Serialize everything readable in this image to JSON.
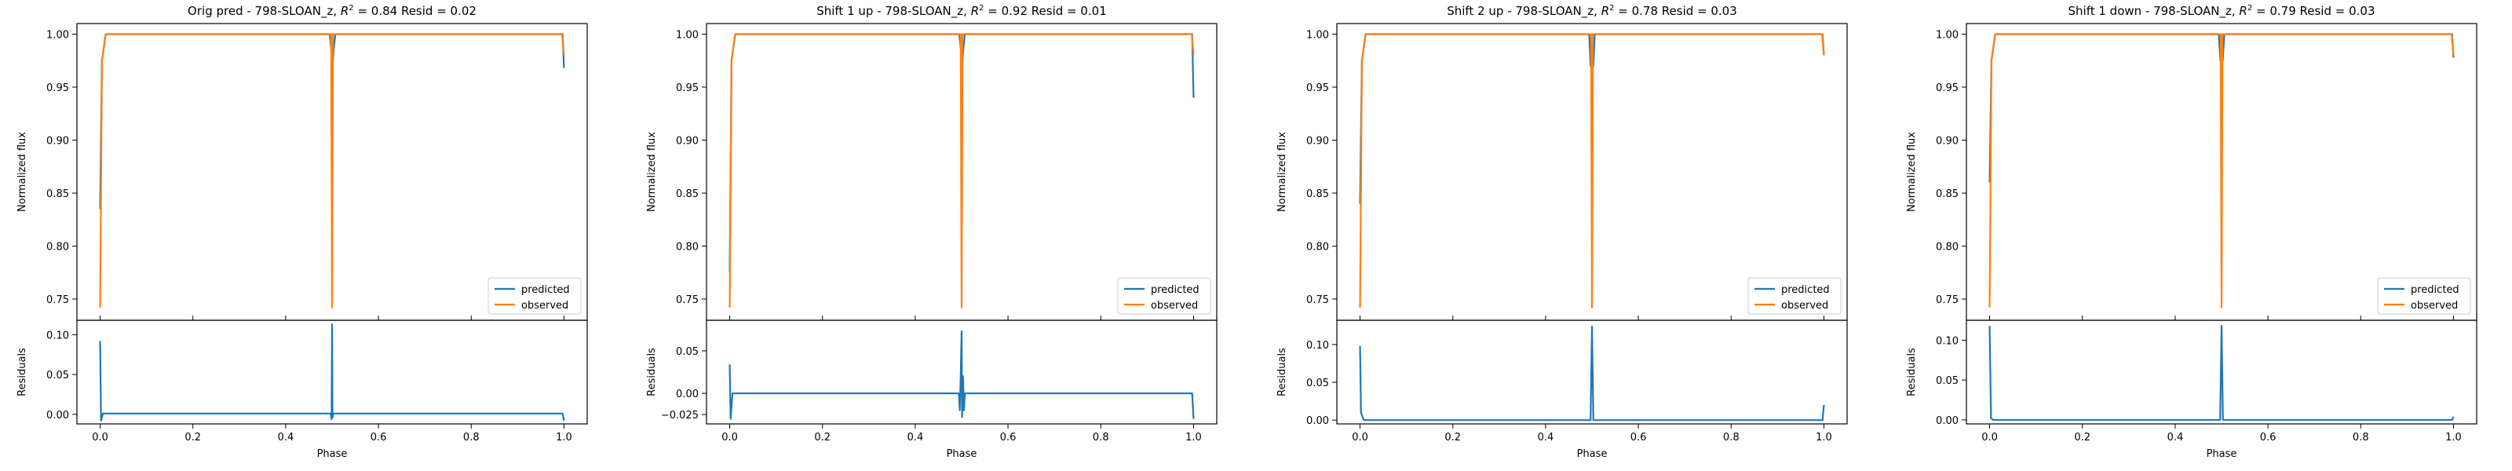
{
  "figure": {
    "colors": {
      "predicted": "#1f77b4",
      "observed": "#ff7f0e",
      "axis": "#000000"
    }
  },
  "chart_data": [
    {
      "type": "line",
      "title": "Orig pred - 798-SLOAN_z, R^2 = 0.84 Resid = 0.02",
      "title_parts": {
        "prefix": "Orig pred - 798-SLOAN_z, ",
        "r2": "0.84",
        "resid_text": " Resid = 0.02"
      },
      "main": {
        "ylabel": "Normalized flux",
        "ylim": [
          0.73,
          1.01
        ],
        "yticks": [
          "0.75",
          "0.80",
          "0.85",
          "0.90",
          "0.95",
          "1.00"
        ],
        "grid": false,
        "legend_position": "lower-right",
        "legend": [
          "predicted",
          "observed"
        ],
        "series": [
          {
            "name": "predicted",
            "points": [
              [
                0,
                0.835
              ],
              [
                0.004,
                0.975
              ],
              [
                0.012,
                1.0
              ],
              [
                0.495,
                1.0
              ],
              [
                0.4985,
                0.985
              ],
              [
                0.501,
                0.97
              ],
              [
                0.5035,
                0.985
              ],
              [
                0.507,
                1.0
              ],
              [
                0.997,
                1.0
              ],
              [
                1.0,
                0.968
              ]
            ]
          },
          {
            "name": "observed",
            "points": [
              [
                0,
                0.742
              ],
              [
                0.004,
                0.975
              ],
              [
                0.012,
                1.0
              ],
              [
                0.498,
                1.0
              ],
              [
                0.5,
                0.742
              ],
              [
                0.502,
                1.0
              ],
              [
                0.996,
                1.0
              ],
              [
                1.0,
                0.98
              ]
            ]
          }
        ]
      },
      "resid": {
        "ylabel": "Residuals",
        "xlabel": "Phase",
        "ylim": [
          -0.012,
          0.118
        ],
        "yticks": [
          "0.10",
          "0.05",
          "0.00"
        ],
        "xticks": [
          "0.0",
          "0.2",
          "0.4",
          "0.6",
          "0.8",
          "1.0"
        ],
        "xlim": [
          -0.05,
          1.05
        ],
        "points": [
          [
            0,
            0.092
          ],
          [
            0.002,
            -0.008
          ],
          [
            0.006,
            0.001
          ],
          [
            0.497,
            0.001
          ],
          [
            0.499,
            -0.006
          ],
          [
            0.5,
            0.113
          ],
          [
            0.501,
            -0.004
          ],
          [
            0.503,
            0.001
          ],
          [
            0.997,
            0.001
          ],
          [
            1.0,
            -0.008
          ]
        ]
      }
    },
    {
      "type": "line",
      "title": "Shift 1 up - 798-SLOAN_z, R^2 = 0.92 Resid = 0.01",
      "title_parts": {
        "prefix": "Shift 1 up - 798-SLOAN_z, ",
        "r2": "0.92",
        "resid_text": " Resid = 0.01"
      },
      "main": {
        "ylabel": "Normalized flux",
        "ylim": [
          0.73,
          1.01
        ],
        "yticks": [
          "0.75",
          "0.80",
          "0.85",
          "0.90",
          "0.95",
          "1.00"
        ],
        "grid": false,
        "legend_position": "lower-right",
        "legend": [
          "predicted",
          "observed"
        ],
        "series": [
          {
            "name": "predicted",
            "points": [
              [
                0,
                0.775
              ],
              [
                0.004,
                0.975
              ],
              [
                0.012,
                1.0
              ],
              [
                0.495,
                1.0
              ],
              [
                0.4985,
                0.985
              ],
              [
                0.501,
                0.97
              ],
              [
                0.5035,
                0.985
              ],
              [
                0.507,
                1.0
              ],
              [
                0.997,
                1.0
              ],
              [
                1.0,
                0.94
              ]
            ]
          },
          {
            "name": "observed",
            "points": [
              [
                0,
                0.742
              ],
              [
                0.004,
                0.975
              ],
              [
                0.012,
                1.0
              ],
              [
                0.498,
                1.0
              ],
              [
                0.5,
                0.742
              ],
              [
                0.502,
                1.0
              ],
              [
                0.996,
                1.0
              ],
              [
                1.0,
                0.98
              ]
            ]
          }
        ]
      },
      "resid": {
        "ylabel": "Residuals",
        "xlabel": "Phase",
        "ylim": [
          -0.036,
          0.086
        ],
        "yticks": [
          "0.05",
          "0.00",
          "−0.025"
        ],
        "ytick_values": [
          0.05,
          0.0,
          -0.025
        ],
        "xticks": [
          "0.0",
          "0.2",
          "0.4",
          "0.6",
          "0.8",
          "1.0"
        ],
        "xlim": [
          -0.05,
          1.05
        ],
        "points": [
          [
            0,
            0.034
          ],
          [
            0.002,
            -0.03
          ],
          [
            0.006,
            0.0
          ],
          [
            0.494,
            0.0
          ],
          [
            0.496,
            -0.02
          ],
          [
            0.498,
            0.02
          ],
          [
            0.5,
            0.073
          ],
          [
            0.501,
            -0.028
          ],
          [
            0.503,
            0.02
          ],
          [
            0.505,
            -0.02
          ],
          [
            0.507,
            0.0
          ],
          [
            0.997,
            0.0
          ],
          [
            1.0,
            -0.03
          ]
        ]
      }
    },
    {
      "type": "line",
      "title": "Shift 2 up - 798-SLOAN_z, R^2 = 0.78 Resid = 0.03",
      "title_parts": {
        "prefix": "Shift 2 up - 798-SLOAN_z, ",
        "r2": "0.78",
        "resid_text": " Resid = 0.03"
      },
      "main": {
        "ylabel": "Normalized flux",
        "ylim": [
          0.73,
          1.01
        ],
        "yticks": [
          "0.75",
          "0.80",
          "0.85",
          "0.90",
          "0.95",
          "1.00"
        ],
        "grid": false,
        "legend_position": "lower-right",
        "legend": [
          "predicted",
          "observed"
        ],
        "series": [
          {
            "name": "predicted",
            "points": [
              [
                0,
                0.84
              ],
              [
                0.004,
                0.975
              ],
              [
                0.012,
                1.0
              ],
              [
                0.494,
                1.0
              ],
              [
                0.497,
                0.97
              ],
              [
                0.5,
                0.995
              ],
              [
                0.503,
                0.97
              ],
              [
                0.506,
                1.0
              ],
              [
                0.997,
                1.0
              ],
              [
                1.0,
                0.98
              ]
            ]
          },
          {
            "name": "observed",
            "points": [
              [
                0,
                0.742
              ],
              [
                0.004,
                0.975
              ],
              [
                0.012,
                1.0
              ],
              [
                0.498,
                1.0
              ],
              [
                0.5,
                0.742
              ],
              [
                0.502,
                1.0
              ],
              [
                0.996,
                1.0
              ],
              [
                1.0,
                0.98
              ]
            ]
          }
        ]
      },
      "resid": {
        "ylabel": "Residuals",
        "xlabel": "Phase",
        "ylim": [
          -0.005,
          0.132
        ],
        "yticks": [
          "0.10",
          "0.05",
          "0.00"
        ],
        "xticks": [
          "0.0",
          "0.2",
          "0.4",
          "0.6",
          "0.8",
          "1.0"
        ],
        "xlim": [
          -0.05,
          1.05
        ],
        "points": [
          [
            0,
            0.098
          ],
          [
            0.002,
            0.01
          ],
          [
            0.008,
            0.0
          ],
          [
            0.497,
            0.0
          ],
          [
            0.5,
            0.124
          ],
          [
            0.503,
            0.0
          ],
          [
            0.997,
            0.0
          ],
          [
            1.0,
            0.02
          ]
        ]
      }
    },
    {
      "type": "line",
      "title": "Shift 1 down - 798-SLOAN_z, R^2 = 0.79 Resid = 0.03",
      "title_parts": {
        "prefix": "Shift 1 down - 798-SLOAN_z, ",
        "r2": "0.79",
        "resid_text": " Resid = 0.03"
      },
      "main": {
        "ylabel": "Normalized flux",
        "ylim": [
          0.73,
          1.01
        ],
        "yticks": [
          "0.75",
          "0.80",
          "0.85",
          "0.90",
          "0.95",
          "1.00"
        ],
        "grid": false,
        "legend_position": "lower-right",
        "legend": [
          "predicted",
          "observed"
        ],
        "series": [
          {
            "name": "predicted",
            "points": [
              [
                0,
                0.86
              ],
              [
                0.004,
                0.975
              ],
              [
                0.012,
                1.0
              ],
              [
                0.494,
                1.0
              ],
              [
                0.4975,
                0.975
              ],
              [
                0.5,
                0.985
              ],
              [
                0.5025,
                0.975
              ],
              [
                0.506,
                1.0
              ],
              [
                0.997,
                1.0
              ],
              [
                1.0,
                0.978
              ]
            ]
          },
          {
            "name": "observed",
            "points": [
              [
                0,
                0.742
              ],
              [
                0.004,
                0.975
              ],
              [
                0.012,
                1.0
              ],
              [
                0.498,
                1.0
              ],
              [
                0.5,
                0.742
              ],
              [
                0.502,
                1.0
              ],
              [
                0.996,
                1.0
              ],
              [
                1.0,
                0.98
              ]
            ]
          }
        ]
      },
      "resid": {
        "ylabel": "Residuals",
        "xlabel": "Phase",
        "ylim": [
          -0.005,
          0.125
        ],
        "yticks": [
          "0.10",
          "0.05",
          "0.00"
        ],
        "xticks": [
          "0.0",
          "0.2",
          "0.4",
          "0.6",
          "0.8",
          "1.0"
        ],
        "xlim": [
          -0.05,
          1.05
        ],
        "points": [
          [
            0,
            0.118
          ],
          [
            0.003,
            0.002
          ],
          [
            0.008,
            0.0
          ],
          [
            0.497,
            0.0
          ],
          [
            0.5,
            0.118
          ],
          [
            0.503,
            0.0
          ],
          [
            0.997,
            0.0
          ],
          [
            1.0,
            0.004
          ]
        ]
      }
    }
  ]
}
